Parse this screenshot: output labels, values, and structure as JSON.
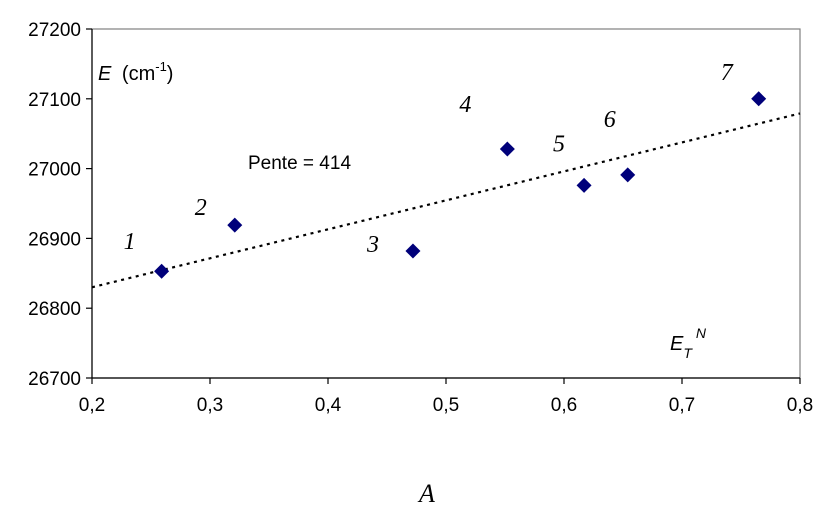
{
  "chart_data": {
    "type": "scatter",
    "xlabel": "A",
    "ylabel_symbol": "E",
    "ylabel_unit_base": "(cm",
    "ylabel_unit_exp": "-1",
    "ylabel_unit_close": ")",
    "xlim": [
      0.2,
      0.8
    ],
    "ylim": [
      26700,
      27200
    ],
    "x_ticks": [
      "0,2",
      "0,3",
      "0,4",
      "0,5",
      "0,6",
      "0,7",
      "0,8"
    ],
    "y_ticks": [
      "26700",
      "26800",
      "26900",
      "27000",
      "27100",
      "27200"
    ],
    "grid": false,
    "legend": "none",
    "marker": "diamond",
    "marker_color": "#00007a",
    "series": [
      {
        "points": [
          {
            "label": "1",
            "x": 0.259,
            "y": 26853
          },
          {
            "label": "2",
            "x": 0.321,
            "y": 26919
          },
          {
            "label": "3",
            "x": 0.472,
            "y": 26882
          },
          {
            "label": "4",
            "x": 0.552,
            "y": 27028
          },
          {
            "label": "5",
            "x": 0.617,
            "y": 26976
          },
          {
            "label": "6",
            "x": 0.654,
            "y": 26991
          },
          {
            "label": "7",
            "x": 0.765,
            "y": 27100
          }
        ]
      }
    ],
    "trendline": {
      "style": "dotted",
      "x": [
        0.2,
        0.8
      ],
      "y": [
        26830,
        27079
      ]
    },
    "annotations": {
      "slope": "Pente = 414",
      "et_main": "E",
      "et_sub": "T",
      "et_sup": "N"
    }
  }
}
